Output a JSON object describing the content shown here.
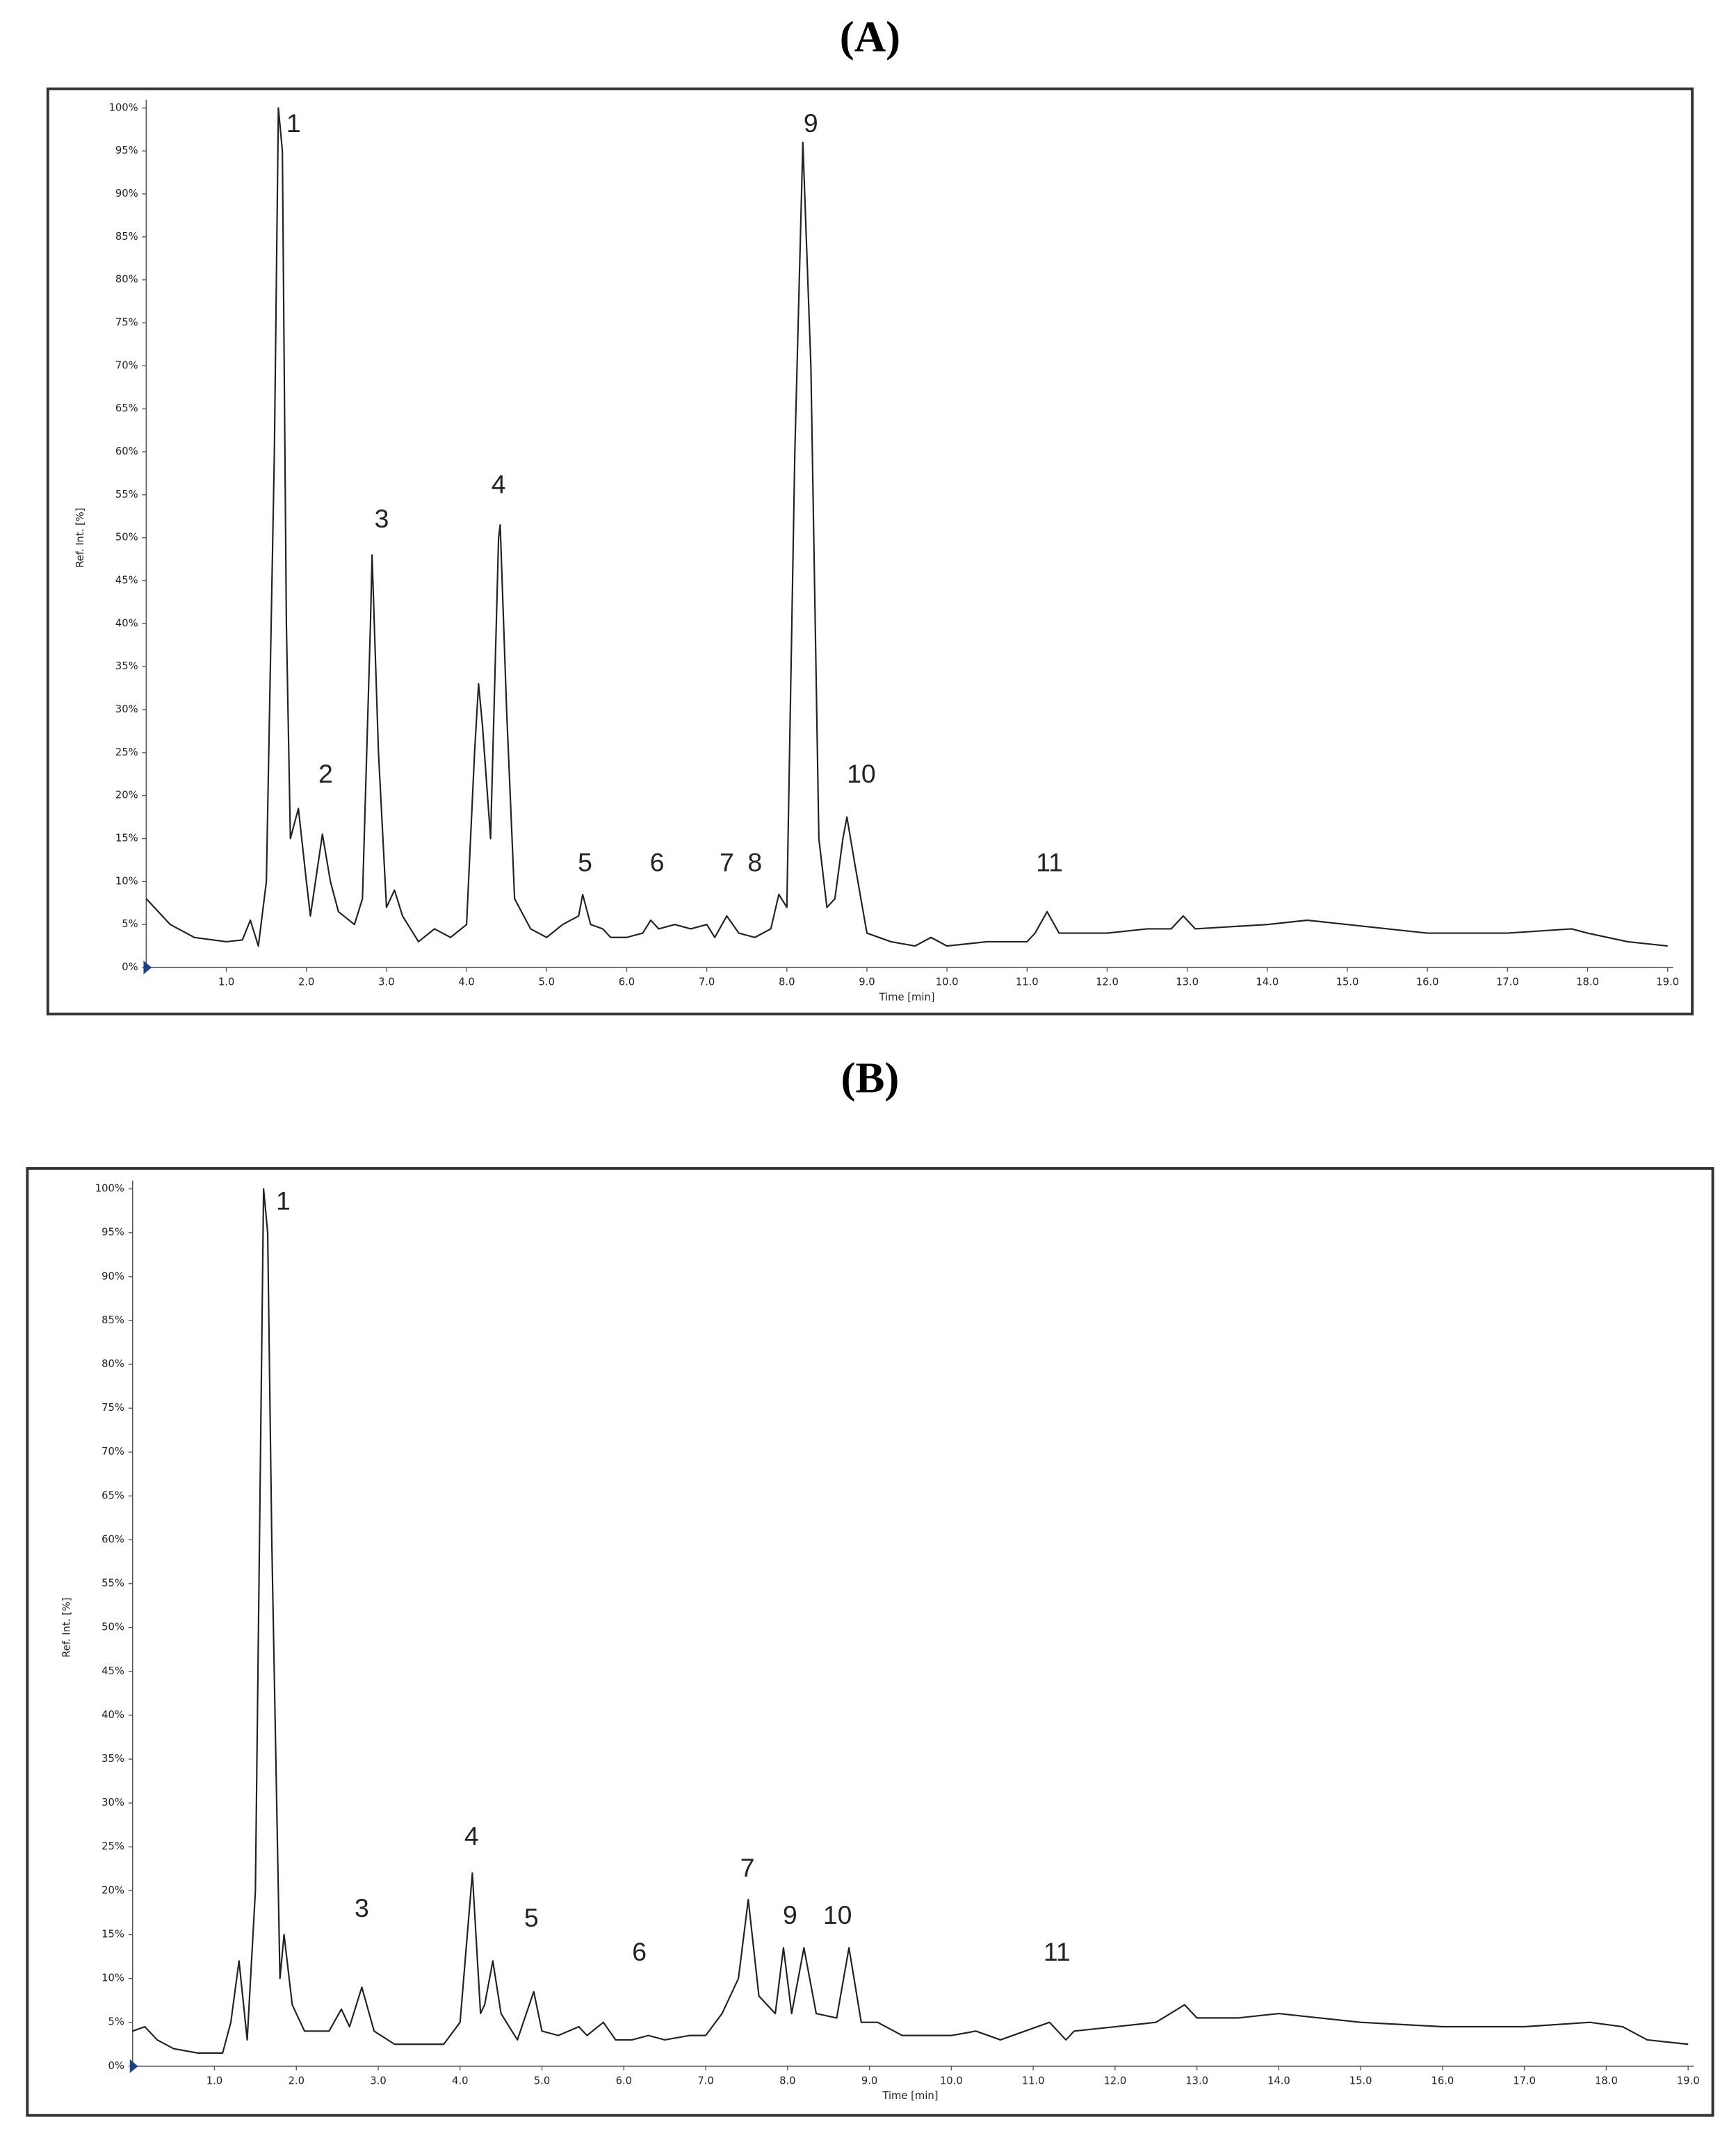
{
  "chart_data": [
    {
      "type": "line",
      "title": "(A)",
      "xlabel": "Time [min]",
      "ylabel": "Ref. Int. [%]",
      "color": "#222222",
      "xlim": [
        0,
        19
      ],
      "ylim": [
        0,
        100
      ],
      "xticks": [
        {
          "value": 1,
          "label": "1.0"
        },
        {
          "value": 2,
          "label": "2.0"
        },
        {
          "value": 3,
          "label": "3.0"
        },
        {
          "value": 4,
          "label": "4.0"
        },
        {
          "value": 5,
          "label": "5.0"
        },
        {
          "value": 6,
          "label": "6.0"
        },
        {
          "value": 7,
          "label": "7.0"
        },
        {
          "value": 8,
          "label": "8.0"
        },
        {
          "value": 9,
          "label": "9.0"
        },
        {
          "value": 10,
          "label": "10.0"
        },
        {
          "value": 11,
          "label": "11.0"
        },
        {
          "value": 12,
          "label": "12.0"
        },
        {
          "value": 13,
          "label": "13.0"
        },
        {
          "value": 14,
          "label": "14.0"
        },
        {
          "value": 15,
          "label": "15.0"
        },
        {
          "value": 16,
          "label": "16.0"
        },
        {
          "value": 17,
          "label": "17.0"
        },
        {
          "value": 18,
          "label": "18.0"
        },
        {
          "value": 19,
          "label": "19.0"
        }
      ],
      "yticks": [
        {
          "value": 0,
          "label": "0%"
        },
        {
          "value": 5,
          "label": "5%"
        },
        {
          "value": 10,
          "label": "10%"
        },
        {
          "value": 15,
          "label": "15%"
        },
        {
          "value": 20,
          "label": "20%"
        },
        {
          "value": 25,
          "label": "25%"
        },
        {
          "value": 30,
          "label": "30%"
        },
        {
          "value": 35,
          "label": "35%"
        },
        {
          "value": 40,
          "label": "40%"
        },
        {
          "value": 45,
          "label": "45%"
        },
        {
          "value": 50,
          "label": "50%"
        },
        {
          "value": 55,
          "label": "55%"
        },
        {
          "value": 60,
          "label": "60%"
        },
        {
          "value": 65,
          "label": "65%"
        },
        {
          "value": 70,
          "label": "70%"
        },
        {
          "value": 75,
          "label": "75%"
        },
        {
          "value": 80,
          "label": "80%"
        },
        {
          "value": 85,
          "label": "85%"
        },
        {
          "value": 90,
          "label": "90%"
        },
        {
          "value": 95,
          "label": "95%"
        },
        {
          "value": 100,
          "label": "100%"
        }
      ],
      "x": [
        0,
        0.3,
        0.6,
        1.0,
        1.2,
        1.3,
        1.4,
        1.5,
        1.6,
        1.65,
        1.7,
        1.75,
        1.8,
        1.9,
        2.0,
        2.05,
        2.2,
        2.3,
        2.4,
        2.6,
        2.7,
        2.8,
        2.82,
        2.9,
        3.0,
        3.1,
        3.2,
        3.4,
        3.6,
        3.8,
        4.0,
        4.1,
        4.15,
        4.2,
        4.3,
        4.4,
        4.42,
        4.5,
        4.6,
        4.8,
        5.0,
        5.2,
        5.4,
        5.45,
        5.55,
        5.7,
        5.8,
        6.0,
        6.2,
        6.3,
        6.4,
        6.6,
        6.8,
        7.0,
        7.1,
        7.25,
        7.4,
        7.6,
        7.8,
        7.9,
        8.0,
        8.1,
        8.2,
        8.3,
        8.4,
        8.5,
        8.6,
        8.7,
        8.75,
        8.85,
        9.0,
        9.3,
        9.6,
        9.8,
        10.0,
        10.5,
        11.0,
        11.1,
        11.25,
        11.4,
        12,
        12.5,
        12.8,
        12.95,
        13.1,
        14.0,
        14.5,
        15.0,
        16.0,
        17.0,
        17.8,
        18.0,
        18.5,
        19.0
      ],
      "values": [
        8,
        5,
        3.5,
        3,
        3.2,
        5.5,
        2.5,
        10,
        60,
        100,
        95,
        40,
        15,
        18.5,
        10,
        6,
        15.5,
        10,
        6.5,
        5,
        8,
        40,
        48,
        25,
        7,
        9,
        6,
        3,
        4.5,
        3.5,
        5,
        25,
        33,
        28,
        15,
        50,
        51.5,
        30,
        8,
        4.5,
        3.5,
        5,
        6,
        8.5,
        5,
        4.5,
        3.5,
        3.5,
        4,
        5.5,
        4.5,
        5,
        4.5,
        5,
        3.5,
        6,
        4,
        3.5,
        4.5,
        8.5,
        7,
        60,
        96,
        70,
        15,
        7,
        8,
        15,
        17.5,
        12,
        4,
        3,
        2.5,
        3.5,
        2.5,
        3,
        3,
        4,
        6.5,
        4,
        4,
        4.5,
        4.5,
        6,
        4.5,
        5,
        5.5,
        5,
        4,
        4,
        4.5,
        4,
        3,
        2.5
      ],
      "annotations": [
        {
          "text": "1",
          "x": 1.84,
          "y": 98
        },
        {
          "text": "2",
          "x": 2.24,
          "y": 22.3
        },
        {
          "text": "3",
          "x": 2.94,
          "y": 52
        },
        {
          "text": "4",
          "x": 4.4,
          "y": 56
        },
        {
          "text": "5",
          "x": 5.48,
          "y": 12
        },
        {
          "text": "6",
          "x": 6.38,
          "y": 12
        },
        {
          "text": "7",
          "x": 7.25,
          "y": 12
        },
        {
          "text": "8",
          "x": 7.6,
          "y": 12
        },
        {
          "text": "9",
          "x": 8.3,
          "y": 98
        },
        {
          "text": "10",
          "x": 8.93,
          "y": 22.3
        },
        {
          "text": "11",
          "x": 11.28,
          "y": 12
        }
      ]
    },
    {
      "type": "line",
      "title": "(B)",
      "xlabel": "Time [min]",
      "ylabel": "Ref. Int. [%]",
      "color": "#222222",
      "xlim": [
        0,
        19
      ],
      "ylim": [
        0,
        100
      ],
      "xticks": [
        {
          "value": 1,
          "label": "1.0"
        },
        {
          "value": 2,
          "label": "2.0"
        },
        {
          "value": 3,
          "label": "3.0"
        },
        {
          "value": 4,
          "label": "4.0"
        },
        {
          "value": 5,
          "label": "5.0"
        },
        {
          "value": 6,
          "label": "6.0"
        },
        {
          "value": 7,
          "label": "7.0"
        },
        {
          "value": 8,
          "label": "8.0"
        },
        {
          "value": 9,
          "label": "9.0"
        },
        {
          "value": 10,
          "label": "10.0"
        },
        {
          "value": 11,
          "label": "11.0"
        },
        {
          "value": 12,
          "label": "12.0"
        },
        {
          "value": 13,
          "label": "13.0"
        },
        {
          "value": 14,
          "label": "14.0"
        },
        {
          "value": 15,
          "label": "15.0"
        },
        {
          "value": 16,
          "label": "16.0"
        },
        {
          "value": 17,
          "label": "17.0"
        },
        {
          "value": 18,
          "label": "18.0"
        },
        {
          "value": 19,
          "label": "19.0"
        }
      ],
      "yticks": [
        {
          "value": 0,
          "label": "0%"
        },
        {
          "value": 5,
          "label": "5%"
        },
        {
          "value": 10,
          "label": "10%"
        },
        {
          "value": 15,
          "label": "15%"
        },
        {
          "value": 20,
          "label": "20%"
        },
        {
          "value": 25,
          "label": "25%"
        },
        {
          "value": 30,
          "label": "30%"
        },
        {
          "value": 35,
          "label": "35%"
        },
        {
          "value": 40,
          "label": "40%"
        },
        {
          "value": 45,
          "label": "45%"
        },
        {
          "value": 50,
          "label": "50%"
        },
        {
          "value": 55,
          "label": "55%"
        },
        {
          "value": 60,
          "label": "60%"
        },
        {
          "value": 65,
          "label": "65%"
        },
        {
          "value": 70,
          "label": "70%"
        },
        {
          "value": 75,
          "label": "75%"
        },
        {
          "value": 80,
          "label": "80%"
        },
        {
          "value": 85,
          "label": "85%"
        },
        {
          "value": 90,
          "label": "90%"
        },
        {
          "value": 95,
          "label": "95%"
        },
        {
          "value": 100,
          "label": "100%"
        }
      ],
      "x": [
        0,
        0.15,
        0.3,
        0.5,
        0.8,
        1.1,
        1.2,
        1.3,
        1.4,
        1.5,
        1.6,
        1.65,
        1.7,
        1.8,
        1.85,
        1.95,
        2.1,
        2.4,
        2.55,
        2.65,
        2.8,
        2.95,
        3.2,
        3.5,
        3.8,
        4.0,
        4.15,
        4.25,
        4.3,
        4.4,
        4.5,
        4.7,
        4.9,
        5.0,
        5.2,
        5.45,
        5.55,
        5.75,
        5.9,
        6.1,
        6.3,
        6.5,
        6.8,
        7.0,
        7.2,
        7.4,
        7.52,
        7.65,
        7.85,
        7.95,
        8.05,
        8.2,
        8.35,
        8.6,
        8.75,
        8.9,
        9.1,
        9.4,
        10.0,
        10.3,
        10.6,
        10.9,
        11.2,
        11.4,
        11.5,
        12.0,
        12.5,
        12.85,
        13.0,
        13.5,
        14.0,
        14.5,
        15.0,
        16.0,
        17.0,
        17.8,
        18.2,
        18.5,
        19.0
      ],
      "values": [
        4,
        4.5,
        3,
        2,
        1.5,
        1.5,
        5,
        12,
        3,
        20,
        100,
        95,
        60,
        10,
        15,
        7,
        4,
        4,
        6.5,
        4.5,
        9,
        4,
        2.5,
        2.5,
        2.5,
        5,
        22,
        6,
        7,
        12,
        6,
        3,
        8.5,
        4,
        3.5,
        4.5,
        3.5,
        5,
        3,
        3,
        3.5,
        3,
        3.5,
        3.5,
        6,
        10,
        19,
        8,
        6,
        13.5,
        6,
        13.5,
        6,
        5.5,
        13.5,
        5,
        5,
        3.5,
        3.5,
        4,
        3,
        4,
        5,
        3,
        4,
        4.5,
        5,
        7,
        5.5,
        5.5,
        6,
        5.5,
        5,
        4.5,
        4.5,
        5,
        4.5,
        3,
        2.5
      ],
      "annotations": [
        {
          "text": "1",
          "x": 1.84,
          "y": 98.4
        },
        {
          "text": "3",
          "x": 2.8,
          "y": 17.8
        },
        {
          "text": "4",
          "x": 4.14,
          "y": 26
        },
        {
          "text": "5",
          "x": 4.87,
          "y": 16.7
        },
        {
          "text": "6",
          "x": 6.19,
          "y": 12.8
        },
        {
          "text": "7",
          "x": 7.51,
          "y": 22.4
        },
        {
          "text": "9",
          "x": 8.03,
          "y": 17
        },
        {
          "text": "10",
          "x": 8.61,
          "y": 17
        },
        {
          "text": "11",
          "x": 11.29,
          "y": 12.8
        }
      ]
    }
  ]
}
